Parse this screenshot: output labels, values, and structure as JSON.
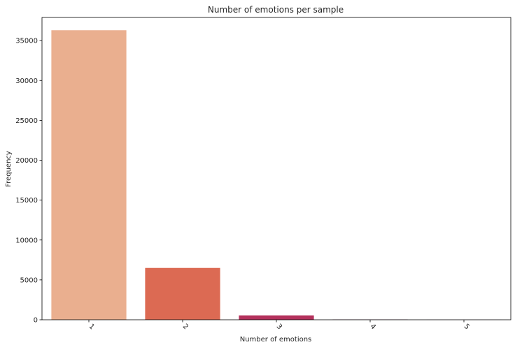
{
  "chart_data": {
    "type": "bar",
    "title": "Number of emotions per sample",
    "xlabel": "Number of emotions",
    "ylabel": "Frequency",
    "categories": [
      "1",
      "2",
      "3",
      "4",
      "5"
    ],
    "values": [
      36300,
      6500,
      550,
      30,
      5
    ],
    "colors": [
      "#eaaf8f",
      "#dc6a53",
      "#b4315c",
      "#6e1c4e",
      "#2d1232"
    ],
    "ylim": [
      0,
      37900
    ],
    "yticks": [
      0,
      5000,
      10000,
      15000,
      20000,
      25000,
      30000,
      35000
    ],
    "x_tick_rotation": 45,
    "grid": false,
    "legend": "none"
  }
}
